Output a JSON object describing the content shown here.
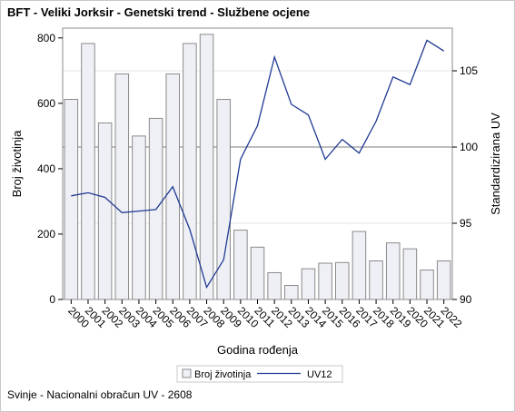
{
  "title": "BFT - Veliki Jorksir - Genetski trend - Službene ocjene",
  "footnote": "Svinje - Nacionalni obračun UV - 2608",
  "colors": {
    "bar_fill": "#eef0f6",
    "bar_stroke": "#8a8a8a",
    "line": "#1f3a93",
    "grid": "#e6e6e6",
    "refline": "#a8a8a8"
  },
  "chart_data": {
    "type": "bar",
    "title": "BFT - Veliki Jorksir - Genetski trend - Službene ocjene",
    "xlabel": "Godina rođenja",
    "ylabel": "Broj životinja",
    "y2label": "Standardizirana UV",
    "categories": [
      "2000",
      "2001",
      "2002",
      "2003",
      "2004",
      "2005",
      "2006",
      "2007",
      "2008",
      "2009",
      "2010",
      "2011",
      "2012",
      "2013",
      "2014",
      "2015",
      "2016",
      "2017",
      "2018",
      "2019",
      "2020",
      "2021",
      "2022"
    ],
    "ylim": [
      0,
      830
    ],
    "y2lim": [
      90,
      107.8
    ],
    "yticks": [
      "0",
      "200",
      "400",
      "600",
      "800"
    ],
    "y2ticks": [
      "90",
      "95",
      "100",
      "105"
    ],
    "reference_line_y2": 100,
    "legend_position": "bottom",
    "grid": true,
    "series": [
      {
        "name": "Broj životinja",
        "type": "bar",
        "axis": "left",
        "values": [
          612,
          783,
          540,
          690,
          500,
          554,
          690,
          783,
          811,
          612,
          212,
          160,
          82,
          43,
          94,
          111,
          113,
          208,
          118,
          173,
          155,
          90,
          118
        ]
      },
      {
        "name": "UV12",
        "type": "line",
        "axis": "right",
        "values": [
          96.8,
          97.0,
          96.7,
          95.7,
          95.8,
          95.9,
          97.4,
          94.6,
          90.8,
          92.6,
          99.2,
          101.4,
          105.9,
          102.8,
          102.1,
          99.2,
          100.5,
          99.6,
          101.7,
          104.6,
          104.1,
          107.0,
          106.3
        ]
      }
    ]
  }
}
